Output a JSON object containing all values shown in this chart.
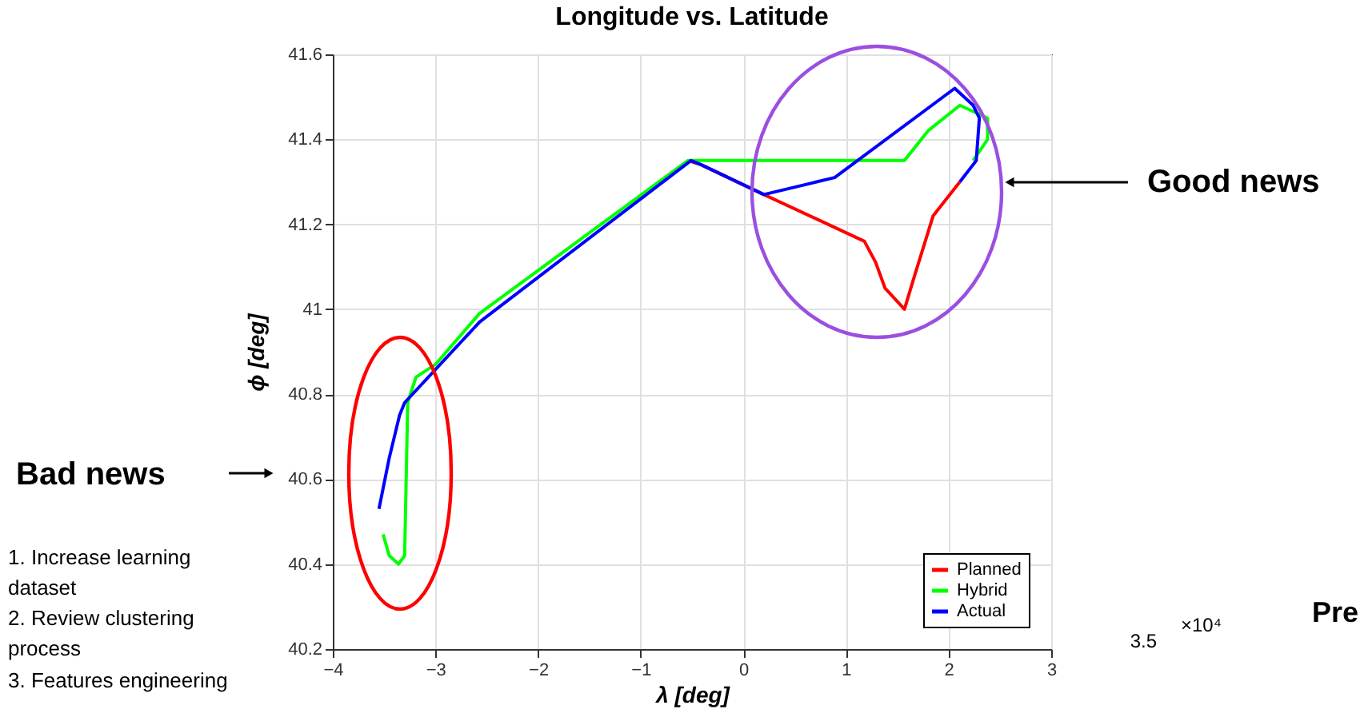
{
  "chart_data": {
    "type": "line",
    "title": "Longitude vs. Latitude",
    "xlabel": "λ [deg]",
    "ylabel": "ϕ [deg]",
    "xlim": [
      -4,
      3
    ],
    "xticks": [
      -4,
      -3,
      -2,
      -1,
      0,
      1,
      2,
      3
    ],
    "ylim": [
      40.2,
      41.6
    ],
    "yticks": [
      40.2,
      40.4,
      40.6,
      40.8,
      41,
      41.2,
      41.4,
      41.6
    ],
    "grid": true,
    "legend": "bottom right",
    "line_style": "solid",
    "marker": "none",
    "series": [
      {
        "name": "Planned",
        "color": "#ff0000",
        "x": [
          -0.54,
          -0.41,
          0.2,
          1.18,
          1.29,
          1.38,
          1.57,
          1.67,
          1.85,
          2.11
        ],
        "values": [
          41.35,
          41.34,
          41.27,
          41.16,
          41.11,
          41.05,
          41.0,
          41.08,
          41.22,
          41.3
        ]
      },
      {
        "name": "Hybrid",
        "color": "#00ff00",
        "x": [
          -3.51,
          -3.45,
          -3.36,
          -3.3,
          -3.27,
          -3.19,
          -3.0,
          -2.57,
          -0.54,
          -0.26,
          1.57,
          1.8,
          2.11,
          2.38,
          2.38,
          2.24
        ],
        "values": [
          40.47,
          40.42,
          40.4,
          40.42,
          40.78,
          40.84,
          40.87,
          40.99,
          41.35,
          41.35,
          41.35,
          41.42,
          41.48,
          41.45,
          41.4,
          41.35
        ]
      },
      {
        "name": "Actual",
        "color": "#0000ff",
        "x": [
          -3.55,
          -3.45,
          -3.35,
          -3.3,
          -2.57,
          -0.51,
          -0.41,
          0.2,
          0.89,
          2.06,
          2.24,
          2.3,
          2.27,
          2.11
        ],
        "values": [
          40.53,
          40.65,
          40.75,
          40.78,
          40.97,
          41.35,
          41.34,
          41.27,
          41.31,
          41.52,
          41.48,
          41.45,
          41.35,
          41.3
        ]
      }
    ],
    "annotations": [
      "Bad news",
      "Good news",
      "1. Increase learning dataset",
      "2. Review clustering process",
      "3. Features engineering",
      "Pre",
      "×10⁴",
      "3.5"
    ]
  }
}
